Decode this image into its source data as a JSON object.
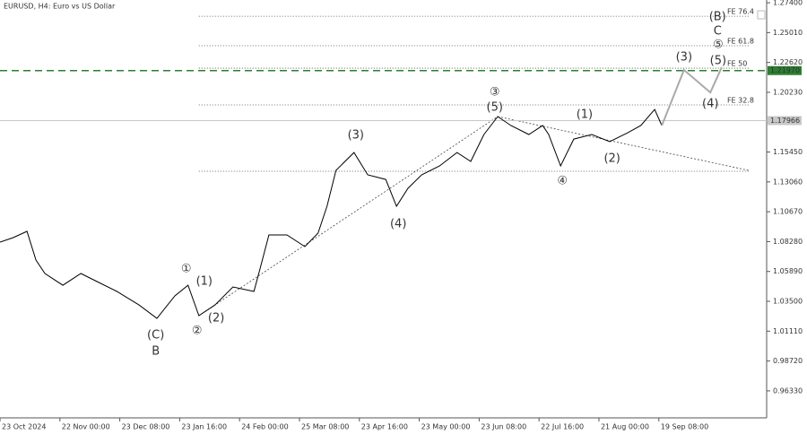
{
  "chart_data": {
    "type": "line",
    "title": "EURUSD, H4:  Euro vs US Dollar",
    "xlim": [
      0,
      12.8
    ],
    "ylim": [
      0.9417,
      1.2762
    ],
    "xticks": [
      {
        "value": 0,
        "label": "23 Oct 2024"
      },
      {
        "value": 1,
        "label": "22 Nov 00:00"
      },
      {
        "value": 2,
        "label": "23 Dec 08:00"
      },
      {
        "value": 3,
        "label": "23 Jan 16:00"
      },
      {
        "value": 4,
        "label": "24 Feb 00:00"
      },
      {
        "value": 5,
        "label": "25 Mar 08:00"
      },
      {
        "value": 6,
        "label": "23 Apr 16:00"
      },
      {
        "value": 7,
        "label": "23 May 00:00"
      },
      {
        "value": 8,
        "label": "23 Jun 08:00"
      },
      {
        "value": 9,
        "label": "22 Jul 16:00"
      },
      {
        "value": 10,
        "label": "21 Aug 00:00"
      },
      {
        "value": 11,
        "label": "19 Sep 08:00"
      }
    ],
    "yticks": [
      {
        "value": 1.274,
        "label": "1.27400"
      },
      {
        "value": 1.2501,
        "label": "1.25010"
      },
      {
        "value": 1.2262,
        "label": "1.22620"
      },
      {
        "value": 1.2023,
        "label": "1.20230"
      },
      {
        "value": 1.1545,
        "label": "1.15450"
      },
      {
        "value": 1.1306,
        "label": "1.13060"
      },
      {
        "value": 1.1067,
        "label": "1.10670"
      },
      {
        "value": 1.0828,
        "label": "1.08280"
      },
      {
        "value": 1.0589,
        "label": "1.05890"
      },
      {
        "value": 1.035,
        "label": "1.03500"
      },
      {
        "value": 1.0111,
        "label": "1.01110"
      },
      {
        "value": 0.9872,
        "label": "0.98720"
      },
      {
        "value": 0.9633,
        "label": "0.96330"
      }
    ],
    "series": [
      {
        "color": "#000000",
        "x": [
          0,
          0.22,
          0.45,
          0.6,
          0.75,
          1.05,
          1.35,
          1.65,
          1.95,
          2.32,
          2.62,
          2.92,
          3.14,
          3.32,
          3.59,
          3.89,
          4.24,
          4.34,
          4.49,
          4.79,
          5.09,
          5.31,
          5.46,
          5.61,
          5.91,
          6.14,
          6.44,
          6.62,
          6.81,
          7.04,
          7.34,
          7.63,
          7.86,
          8.08,
          8.31,
          8.53,
          8.83,
          9.06,
          9.16,
          9.36,
          9.58,
          9.88,
          10.18,
          10.48,
          10.7,
          10.93,
          11.05
        ],
        "values": [
          1.0824,
          1.086,
          1.091,
          1.068,
          1.0573,
          1.0479,
          1.0573,
          1.0501,
          1.0429,
          1.0321,
          1.0214,
          1.0393,
          1.0479,
          1.0235,
          1.0321,
          1.0465,
          1.0429,
          1.0608,
          1.0881,
          1.0881,
          1.0788,
          1.0896,
          1.1111,
          1.1398,
          1.1541,
          1.1362,
          1.1326,
          1.1111,
          1.1254,
          1.1362,
          1.1434,
          1.1541,
          1.147,
          1.1685,
          1.1829,
          1.1757,
          1.1685,
          1.1757,
          1.1685,
          1.1434,
          1.1649,
          1.1685,
          1.1628,
          1.1699,
          1.1757,
          1.1886,
          1.1757
        ]
      },
      {
        "color": "#aaaaaa",
        "x": [
          11.05,
          11.42,
          11.86,
          12.05
        ],
        "values": [
          1.1757,
          1.2202,
          1.2022,
          1.2223
        ]
      }
    ],
    "fib_lines": [
      {
        "label": "FE 76.4",
        "value": 1.2632,
        "x": [
          3.32,
          12.5
        ]
      },
      {
        "label": "FE 61.8",
        "value": 1.2396,
        "x": [
          3.32,
          12.5
        ]
      },
      {
        "label": "FE 50",
        "value": 1.2216,
        "x": [
          3.32,
          12.5
        ]
      },
      {
        "label": "FE 32.8",
        "value": 1.1922,
        "x": [
          3.32,
          12.5
        ]
      },
      {
        "value": 1.1391,
        "x": [
          3.32,
          12.5
        ]
      }
    ],
    "trendlines": [
      {
        "x": [
          3.32,
          8.31
        ],
        "values": [
          1.0235,
          1.1829
        ]
      },
      {
        "x": [
          8.31,
          12.5
        ],
        "values": [
          1.1829,
          1.1398
        ]
      }
    ],
    "price_tags": [
      {
        "value": 1.2197,
        "label": "1.21970",
        "color": "#2e7d32"
      },
      {
        "value": 1.17966,
        "label": "1.17966",
        "color": "#c8c8c8"
      }
    ],
    "annotations": [
      {
        "text": "①",
        "x": 3.11,
        "y": 1.0608,
        "color": "#2e9b2e"
      },
      {
        "text": "(1)",
        "x": 3.41,
        "y": 1.0508,
        "color": "#1f2a7a"
      },
      {
        "text": "②",
        "x": 3.29,
        "y": 1.0113,
        "color": "#2e9b2e"
      },
      {
        "text": "(2)",
        "x": 3.61,
        "y": 1.0214,
        "color": "#1f2a7a"
      },
      {
        "text": "(C)",
        "x": 2.6,
        "y": 1.0077,
        "color": "#1f2a7a"
      },
      {
        "text": "B",
        "x": 2.6,
        "y": 0.9948,
        "color": "#a01010"
      },
      {
        "text": "(3)",
        "x": 5.94,
        "y": 1.1678,
        "color": "#1f2a7a"
      },
      {
        "text": "(4)",
        "x": 6.65,
        "y": 1.0967,
        "color": "#1f2a7a"
      },
      {
        "text": "③",
        "x": 8.26,
        "y": 1.2022,
        "color": "#2e9b2e"
      },
      {
        "text": "(5)",
        "x": 8.26,
        "y": 1.19,
        "color": "#1f2a7a"
      },
      {
        "text": "(1)",
        "x": 9.76,
        "y": 1.1843,
        "color": "#1f2a7a"
      },
      {
        "text": "(2)",
        "x": 10.22,
        "y": 1.1491,
        "color": "#1f2a7a"
      },
      {
        "text": "④",
        "x": 9.39,
        "y": 1.1312,
        "color": "#2e9b2e"
      },
      {
        "text": "(3)",
        "x": 11.42,
        "y": 1.2302,
        "color": "#1f2a7a"
      },
      {
        "text": "(4)",
        "x": 11.86,
        "y": 1.1929,
        "color": "#1f2a7a"
      },
      {
        "text": "(5)",
        "x": 11.99,
        "y": 1.2273,
        "color": "#1f2a7a"
      },
      {
        "text": "⑤",
        "x": 11.99,
        "y": 1.2403,
        "color": "#2e9b2e"
      },
      {
        "text": "C",
        "x": 11.98,
        "y": 1.251,
        "color": "#a01010"
      },
      {
        "text": "(B)",
        "x": 11.98,
        "y": 1.2625,
        "color": "#1f2a7a"
      }
    ]
  }
}
